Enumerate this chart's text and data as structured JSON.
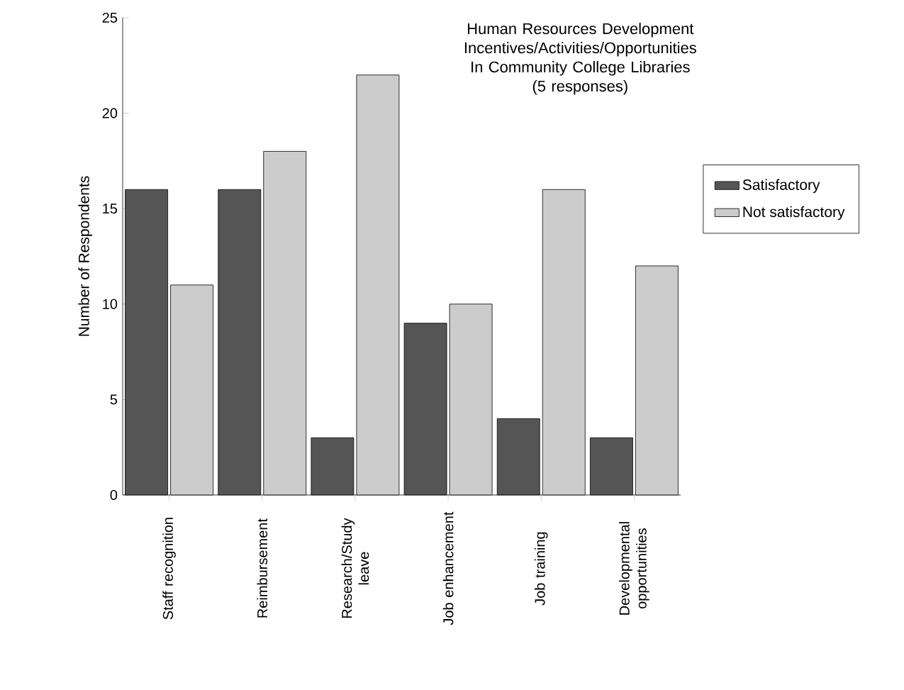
{
  "chart_data": {
    "type": "bar",
    "title": "Human Resources Development Incentives/Activities/Opportunities In Community College Libraries",
    "subtitle": "(5 responses)",
    "ylabel": "Number of Respondents",
    "categories": [
      "Staff recognition",
      "Reimbursement",
      "Research/Study leave",
      "Job enhancement",
      "Job training",
      "Developmental opportunities"
    ],
    "series": [
      {
        "name": "Satisfactory",
        "color": "#555555",
        "values": [
          16,
          16,
          3,
          9,
          4,
          3
        ]
      },
      {
        "name": "Not satisfactory",
        "color": "#cccccc",
        "values": [
          11,
          18,
          22,
          10,
          16,
          12
        ]
      }
    ],
    "ylim": [
      0,
      25
    ],
    "yticks": [
      0,
      5,
      10,
      15,
      20,
      25
    ],
    "grid": false,
    "legend": "right"
  }
}
